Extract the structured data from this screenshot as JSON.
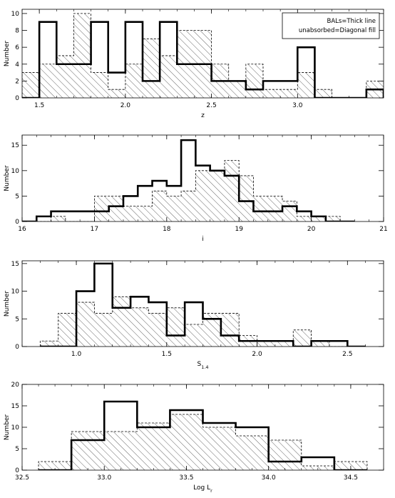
{
  "chart_data": [
    {
      "type": "bar",
      "panel": "z",
      "xlabel": "z",
      "ylabel": "Number",
      "xlim": [
        1.4,
        3.5
      ],
      "ylim": [
        0,
        10.5
      ],
      "xticks": [
        1.5,
        2.0,
        2.5,
        3.0
      ],
      "xtick_labels": [
        "1.5",
        "2.0",
        "2.5",
        "3.0"
      ],
      "yticks": [
        0,
        2,
        4,
        6,
        8,
        10
      ],
      "ytick_labels": [
        "0",
        "2",
        "4",
        "6",
        "8",
        "10"
      ],
      "legend": {
        "placement": "top-right",
        "entries": [
          "BALs=Thick line",
          "unabsorbed=Diagonal fill"
        ]
      },
      "series": [
        {
          "name": "BALs",
          "style": "thick-line",
          "bin_edges": [
            1.4,
            1.5,
            1.6,
            1.7,
            1.8,
            1.9,
            2.0,
            2.1,
            2.2,
            2.3,
            2.4,
            2.5,
            2.6,
            2.7,
            2.8,
            2.9,
            3.0,
            3.1,
            3.2,
            3.3,
            3.4,
            3.5
          ],
          "values": [
            0,
            9,
            4,
            4,
            9,
            3,
            9,
            2,
            9,
            4,
            4,
            2,
            2,
            1,
            2,
            2,
            6,
            0,
            0,
            0,
            1
          ]
        },
        {
          "name": "unabsorbed",
          "style": "diagonal-fill",
          "bin_edges": [
            1.4,
            1.5,
            1.6,
            1.7,
            1.8,
            1.9,
            2.0,
            2.1,
            2.2,
            2.3,
            2.4,
            2.5,
            2.6,
            2.7,
            2.8,
            2.9,
            3.0,
            3.1,
            3.2,
            3.3,
            3.4,
            3.5
          ],
          "values": [
            3,
            4,
            5,
            10,
            3,
            1,
            4,
            7,
            5,
            8,
            8,
            4,
            2,
            4,
            1,
            1,
            3,
            1,
            0,
            0,
            2
          ]
        }
      ]
    },
    {
      "type": "bar",
      "panel": "i",
      "xlabel": "i",
      "ylabel": "Number",
      "xlim": [
        16,
        21
      ],
      "ylim": [
        0,
        17
      ],
      "xticks": [
        16,
        17,
        18,
        19,
        20,
        21
      ],
      "xtick_labels": [
        "16",
        "17",
        "18",
        "19",
        "20",
        "21"
      ],
      "yticks": [
        0,
        5,
        10,
        15
      ],
      "ytick_labels": [
        "0",
        "5",
        "10",
        "15"
      ],
      "series": [
        {
          "name": "BALs",
          "style": "thick-line",
          "bin_edges": [
            16.0,
            16.2,
            16.4,
            16.6,
            16.8,
            17.0,
            17.2,
            17.4,
            17.6,
            17.8,
            18.0,
            18.2,
            18.4,
            18.6,
            18.8,
            19.0,
            19.2,
            19.4,
            19.6,
            19.8,
            20.0,
            20.2,
            20.4,
            20.6
          ],
          "values": [
            0,
            1,
            2,
            2,
            2,
            2,
            3,
            5,
            7,
            8,
            7,
            16,
            11,
            10,
            9,
            4,
            2,
            2,
            3,
            2,
            1,
            0,
            0
          ]
        },
        {
          "name": "unabsorbed",
          "style": "diagonal-fill",
          "bin_edges": [
            16.0,
            16.2,
            16.4,
            16.6,
            16.8,
            17.0,
            17.2,
            17.4,
            17.6,
            17.8,
            18.0,
            18.2,
            18.4,
            18.6,
            18.8,
            19.0,
            19.2,
            19.4,
            19.6,
            19.8,
            20.0,
            20.2,
            20.4,
            20.6
          ],
          "values": [
            0,
            0,
            1,
            0,
            0,
            5,
            5,
            3,
            3,
            6,
            5,
            6,
            10,
            10,
            12,
            9,
            5,
            5,
            4,
            1,
            1,
            1,
            0
          ]
        }
      ]
    },
    {
      "type": "bar",
      "panel": "S14",
      "xlabel": "S",
      "xlabel_subscript": "1.4",
      "ylabel": "Number",
      "xlim": [
        0.7,
        2.7
      ],
      "ylim": [
        0,
        15.5
      ],
      "xticks": [
        1.0,
        1.5,
        2.0,
        2.5
      ],
      "xtick_labels": [
        "1.0",
        "1.5",
        "2.0",
        "2.5"
      ],
      "yticks": [
        0,
        5,
        10,
        15
      ],
      "ytick_labels": [
        "0",
        "5",
        "10",
        "15"
      ],
      "series": [
        {
          "name": "BALs",
          "style": "thick-line",
          "bin_edges": [
            0.8,
            0.9,
            1.0,
            1.1,
            1.2,
            1.3,
            1.4,
            1.5,
            1.6,
            1.7,
            1.8,
            1.9,
            2.0,
            2.1,
            2.2,
            2.3,
            2.4,
            2.5,
            2.6
          ],
          "values": [
            0,
            0,
            10,
            15,
            7,
            9,
            8,
            2,
            8,
            5,
            2,
            1,
            1,
            1,
            0,
            1,
            1,
            0
          ]
        },
        {
          "name": "unabsorbed",
          "style": "diagonal-fill",
          "bin_edges": [
            0.8,
            0.9,
            1.0,
            1.1,
            1.2,
            1.3,
            1.4,
            1.5,
            1.6,
            1.7,
            1.8,
            1.9,
            2.0,
            2.1,
            2.2,
            2.3,
            2.4,
            2.5,
            2.6
          ],
          "values": [
            1,
            6,
            8,
            6,
            9,
            7,
            6,
            7,
            4,
            6,
            6,
            2,
            1,
            1,
            3,
            1,
            0,
            0
          ]
        }
      ]
    },
    {
      "type": "bar",
      "panel": "LogLr",
      "xlabel": "Log L",
      "xlabel_subscript": "r",
      "ylabel": "Number",
      "xlim": [
        32.5,
        34.7
      ],
      "ylim": [
        0,
        20
      ],
      "xticks": [
        32.5,
        33.0,
        33.5,
        34.0,
        34.5
      ],
      "xtick_labels": [
        "32.5",
        "33.0",
        "33.5",
        "34.0",
        "34.5"
      ],
      "yticks": [
        0,
        5,
        10,
        15,
        20
      ],
      "ytick_labels": [
        "0",
        "5",
        "10",
        "15",
        "20"
      ],
      "series": [
        {
          "name": "BALs",
          "style": "thick-line",
          "bin_edges": [
            32.6,
            32.8,
            33.0,
            33.2,
            33.4,
            33.6,
            33.8,
            34.0,
            34.2,
            34.4,
            34.6
          ],
          "values": [
            0,
            7,
            16,
            10,
            14,
            11,
            10,
            2,
            3,
            0
          ]
        },
        {
          "name": "unabsorbed",
          "style": "diagonal-fill",
          "bin_edges": [
            32.6,
            32.8,
            33.0,
            33.2,
            33.4,
            33.6,
            33.8,
            34.0,
            34.2,
            34.4,
            34.6
          ],
          "values": [
            2,
            9,
            9,
            11,
            13,
            10,
            8,
            7,
            1,
            2
          ]
        }
      ]
    }
  ]
}
